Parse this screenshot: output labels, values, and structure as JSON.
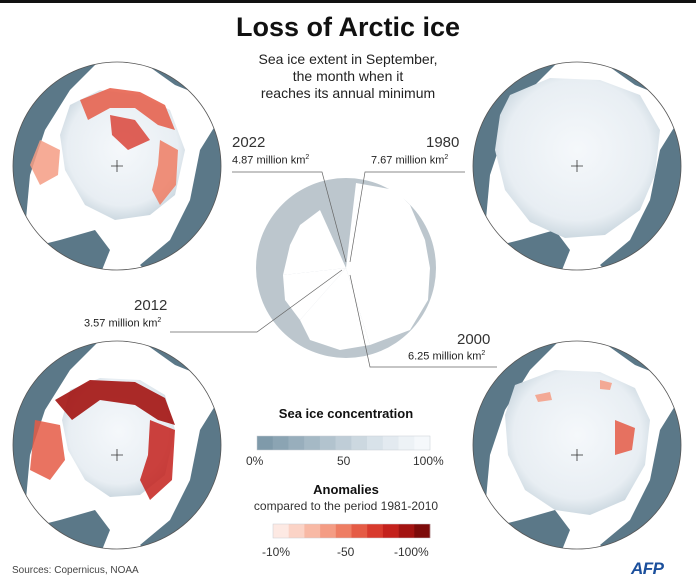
{
  "title": "Loss of Arctic ice",
  "subtitle": [
    "Sea ice extent in September,",
    "the month when it",
    "reaches its annual minimum"
  ],
  "maps": [
    {
      "year": "2022",
      "extent": "4.87 million km",
      "unit_sup": "2"
    },
    {
      "year": "1980",
      "extent": "7.67 million km",
      "unit_sup": "2"
    },
    {
      "year": "2012",
      "extent": "3.57 million km",
      "unit_sup": "2"
    },
    {
      "year": "2000",
      "extent": "6.25 million km",
      "unit_sup": "2"
    }
  ],
  "legend": {
    "concentration_title": "Sea ice concentration",
    "concentration_ticks": [
      "0%",
      "50",
      "100%"
    ],
    "concentration_colors": [
      "#7f9aaa",
      "#8ba4b3",
      "#98aebc",
      "#a5b9c5",
      "#b2c3ce",
      "#bfcdd7",
      "#ccd8e0",
      "#d8e2e9",
      "#e3eaf0",
      "#edf2f6",
      "#f5f8fb"
    ],
    "anomalies_title": "Anomalies",
    "anomalies_subtitle": "compared to the period 1981-2010",
    "anomalies_ticks": [
      "-10%",
      "-50",
      "-100%"
    ],
    "anomalies_colors": [
      "#fde9e3",
      "#fbd3c6",
      "#f8b9a5",
      "#f49c84",
      "#ee7d63",
      "#e55b45",
      "#d83a2d",
      "#c4211c",
      "#a31311",
      "#7d0b0a"
    ]
  },
  "source": "Sources: Copernicus, NOAA",
  "logo": "AFP",
  "colors": {
    "ocean": "#ffffff",
    "land": "#5b7888",
    "ice": "#eef3f7",
    "pie_fill": "#bcc6cd"
  }
}
